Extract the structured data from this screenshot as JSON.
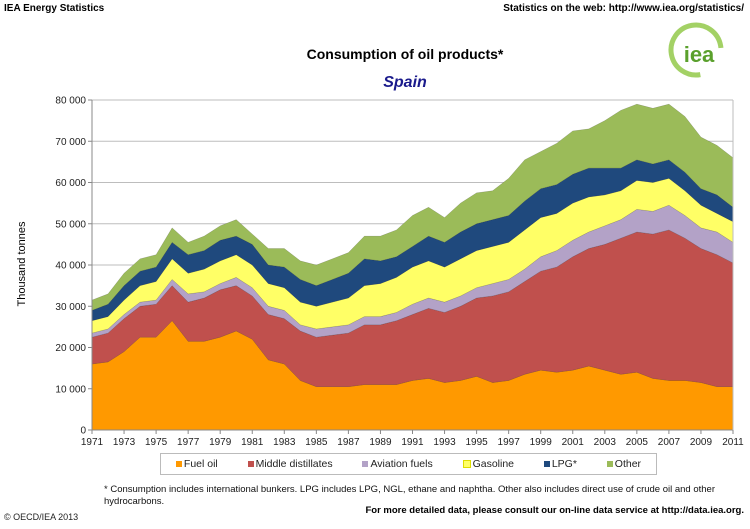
{
  "header": {
    "left": "IEA Energy Statistics",
    "right": "Statistics on the web: http://www.iea.org/statistics/"
  },
  "logo": {
    "text": "iea"
  },
  "footnote": "* Consumption includes international bunkers. LPG includes LPG, NGL, ethane and naphtha. Other also includes direct use of crude oil and other hydrocarbons.",
  "copyright": "© OECD/IEA 2013",
  "more_info": "For more detailed data, please consult our on-line data service at http://data.iea.org.",
  "chart_data": {
    "type": "area",
    "stacked": true,
    "title": "Consumption of oil products*",
    "subtitle": "Spain",
    "xlabel": "",
    "ylabel": "Thousand tonnes",
    "ylim": [
      0,
      80000
    ],
    "yticks": [
      "0",
      "10 000",
      "20 000",
      "30 000",
      "40 000",
      "50 000",
      "60 000",
      "70 000",
      "80 000"
    ],
    "xticks": [
      "1971",
      "1973",
      "1975",
      "1977",
      "1979",
      "1981",
      "1983",
      "1985",
      "1987",
      "1989",
      "1991",
      "1993",
      "1995",
      "1997",
      "1999",
      "2001",
      "2003",
      "2005",
      "2007",
      "2009",
      "2011"
    ],
    "grid": true,
    "legend_position": "bottom",
    "x": [
      1971,
      1972,
      1973,
      1974,
      1975,
      1976,
      1977,
      1978,
      1979,
      1980,
      1981,
      1982,
      1983,
      1984,
      1985,
      1986,
      1987,
      1988,
      1989,
      1990,
      1991,
      1992,
      1993,
      1994,
      1995,
      1996,
      1997,
      1998,
      1999,
      2000,
      2001,
      2002,
      2003,
      2004,
      2005,
      2006,
      2007,
      2008,
      2009,
      2010,
      2011
    ],
    "series": [
      {
        "name": "Fuel oil",
        "color": "#FF9900",
        "values": [
          16000,
          16500,
          19000,
          22500,
          22500,
          26500,
          21500,
          21500,
          22500,
          24000,
          22000,
          17000,
          16000,
          12000,
          10500,
          10500,
          10500,
          11000,
          11000,
          11000,
          12000,
          12500,
          11500,
          12000,
          13000,
          11500,
          12000,
          13500,
          14500,
          14000,
          14500,
          15500,
          14500,
          13500,
          14000,
          12500,
          12000,
          12000,
          11500,
          10500,
          10500
        ]
      },
      {
        "name": "Middle distillates",
        "color": "#C0504D",
        "values": [
          6500,
          7000,
          8000,
          7500,
          8000,
          8500,
          9500,
          10500,
          11500,
          11000,
          10500,
          11000,
          11000,
          12000,
          12000,
          12500,
          13000,
          14500,
          14500,
          15500,
          16000,
          17000,
          17000,
          18000,
          19000,
          21000,
          21500,
          22500,
          24000,
          25500,
          27500,
          28500,
          30500,
          33000,
          34000,
          35000,
          36500,
          34500,
          32500,
          32000,
          30000
        ]
      },
      {
        "name": "Aviation fuels",
        "color": "#B3A2C7",
        "values": [
          1000,
          1000,
          1000,
          1000,
          1000,
          1500,
          2000,
          1500,
          1500,
          2000,
          2000,
          2000,
          2000,
          1500,
          2000,
          2000,
          2000,
          2000,
          2000,
          2000,
          2500,
          2500,
          2500,
          2500,
          2500,
          3000,
          3000,
          3000,
          3500,
          4000,
          4000,
          4000,
          4500,
          4500,
          5500,
          5500,
          6000,
          5500,
          5000,
          5500,
          5000
        ]
      },
      {
        "name": "Gasoline",
        "color": "#FFFF66",
        "values": [
          3000,
          3000,
          3500,
          4000,
          4500,
          5000,
          5000,
          5500,
          5500,
          5500,
          5500,
          5500,
          5500,
          5500,
          5500,
          6000,
          6500,
          7500,
          8000,
          8500,
          9000,
          9000,
          8500,
          9000,
          9000,
          9000,
          9000,
          9500,
          9500,
          9000,
          9000,
          8500,
          7500,
          7000,
          7000,
          7000,
          6500,
          6000,
          5500,
          4500,
          5000
        ]
      },
      {
        "name": "LPG*",
        "color": "#1F497D",
        "values": [
          2500,
          3000,
          3500,
          3500,
          3500,
          4000,
          4500,
          4500,
          5000,
          4500,
          5000,
          4500,
          5000,
          5500,
          5000,
          5500,
          6000,
          6500,
          5500,
          5000,
          5000,
          6000,
          6000,
          6500,
          6500,
          6500,
          6500,
          7000,
          7000,
          7000,
          7000,
          7000,
          6500,
          5500,
          5000,
          4500,
          4500,
          4500,
          4000,
          4500,
          3500
        ]
      },
      {
        "name": "Other",
        "color": "#9BBB59",
        "values": [
          2500,
          2500,
          3000,
          3000,
          3000,
          3500,
          3000,
          3500,
          3500,
          4000,
          2500,
          4000,
          4500,
          4500,
          5000,
          5000,
          5000,
          5500,
          6000,
          6500,
          7500,
          7000,
          6000,
          7000,
          7500,
          7000,
          9000,
          10000,
          9000,
          10000,
          10500,
          9500,
          11500,
          14000,
          13500,
          13500,
          13500,
          13500,
          12500,
          12000,
          12000
        ]
      }
    ]
  }
}
